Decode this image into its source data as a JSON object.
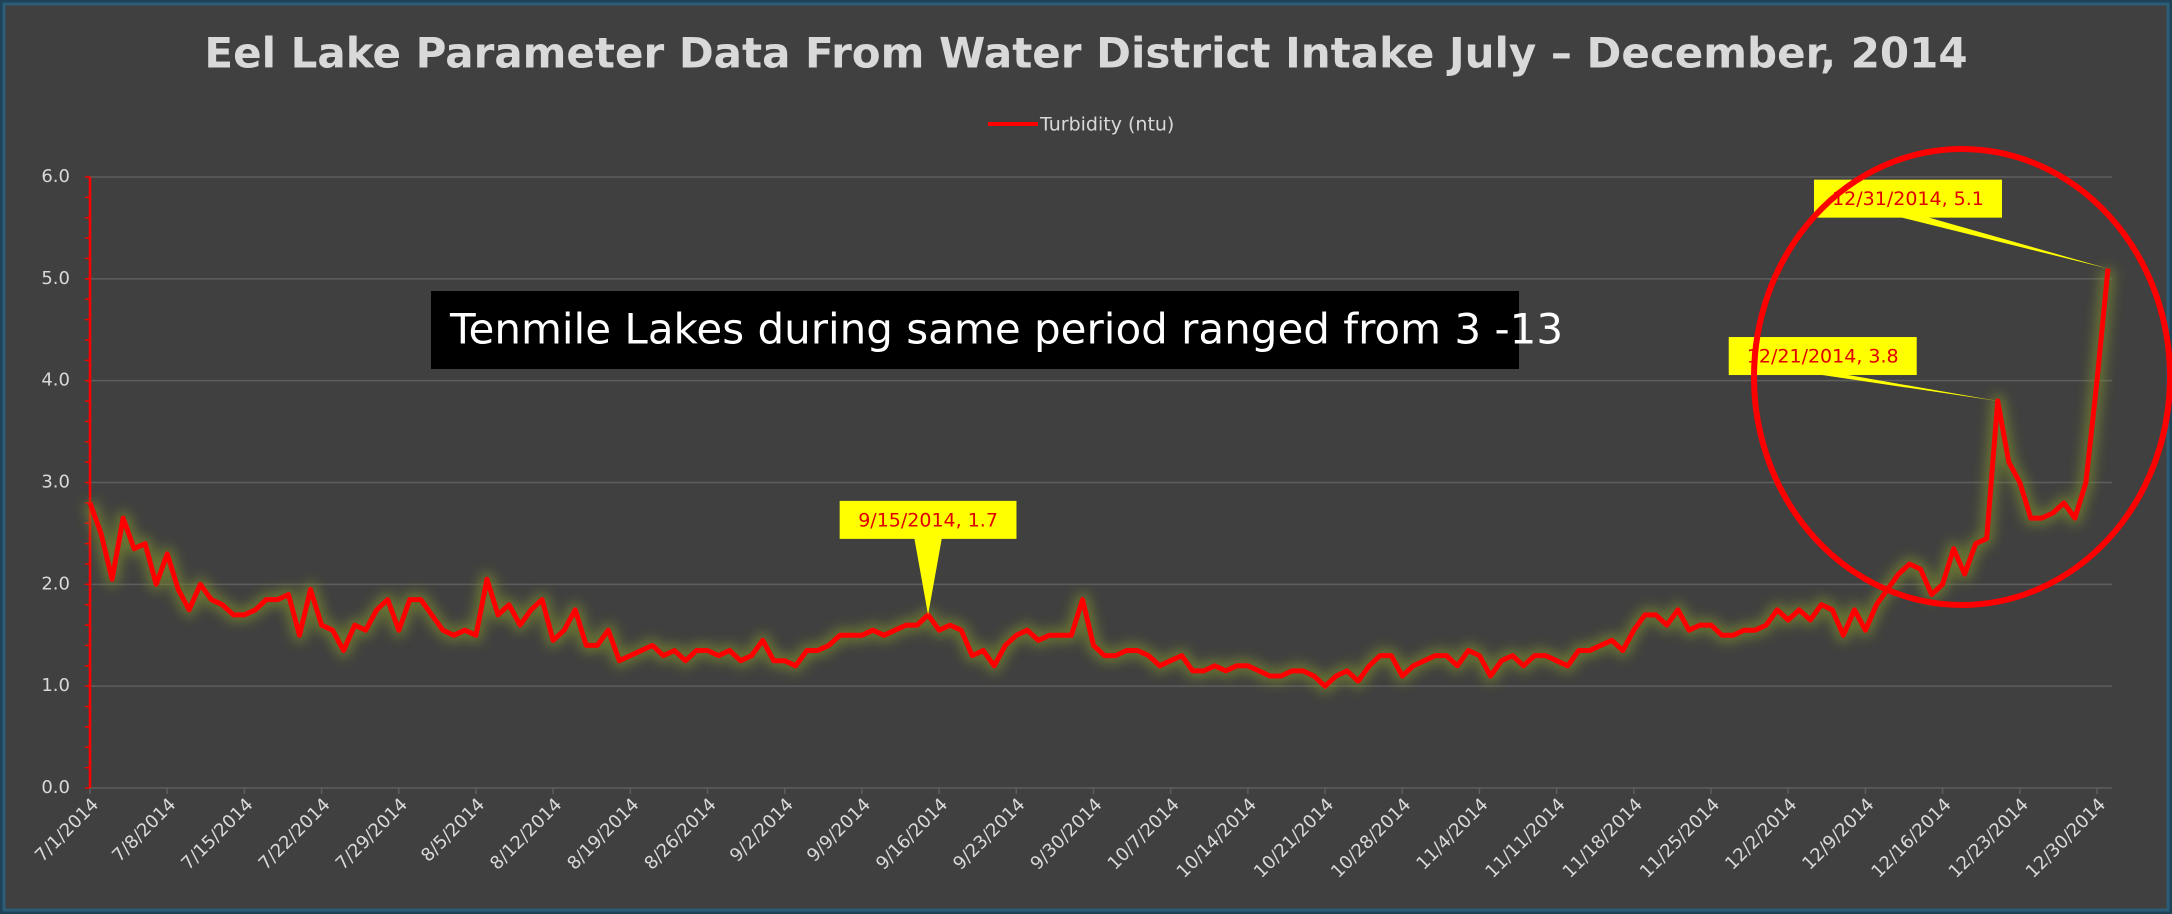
{
  "chart_data": {
    "type": "line",
    "title": "Eel Lake Parameter Data    From Water District Intake    July – December, 2014",
    "annotation": "Tenmile Lakes  during same period ranged from 3 -13",
    "categories": [
      "7/1/2014",
      null,
      null,
      null,
      null,
      null,
      null,
      "7/8/2014",
      null,
      null,
      null,
      null,
      null,
      null,
      "7/15/2014",
      null,
      null,
      null,
      null,
      null,
      null,
      "7/22/2014",
      null,
      null,
      null,
      null,
      null,
      null,
      "7/29/2014",
      null,
      null,
      null,
      null,
      null,
      null,
      "8/5/2014",
      null,
      null,
      null,
      null,
      null,
      null,
      "8/12/2014",
      null,
      null,
      null,
      null,
      null,
      null,
      "8/19/2014",
      null,
      null,
      null,
      null,
      null,
      null,
      "8/26/2014",
      null,
      null,
      null,
      null,
      null,
      null,
      "9/2/2014",
      null,
      null,
      null,
      null,
      null,
      null,
      "9/9/2014",
      null,
      null,
      null,
      null,
      null,
      null,
      "9/16/2014",
      null,
      null,
      null,
      null,
      null,
      null,
      "9/23/2014",
      null,
      null,
      null,
      null,
      null,
      null,
      "9/30/2014",
      null,
      null,
      null,
      null,
      null,
      null,
      "10/7/2014",
      null,
      null,
      null,
      null,
      null,
      null,
      "10/14/2014",
      null,
      null,
      null,
      null,
      null,
      null,
      "10/21/2014",
      null,
      null,
      null,
      null,
      null,
      null,
      "10/28/2014",
      null,
      null,
      null,
      null,
      null,
      null,
      "11/4/2014",
      null,
      null,
      null,
      null,
      null,
      null,
      "11/11/2014",
      null,
      null,
      null,
      null,
      null,
      null,
      "11/18/2014",
      null,
      null,
      null,
      null,
      null,
      null,
      "11/25/2014",
      null,
      null,
      null,
      null,
      null,
      null,
      "12/2/2014",
      null,
      null,
      null,
      null,
      null,
      null,
      "12/9/2014",
      null,
      null,
      null,
      null,
      null,
      null,
      "12/16/2014",
      null,
      null,
      null,
      null,
      null,
      null,
      "12/23/2014",
      null,
      null,
      null,
      null,
      null,
      null,
      "12/30/2014",
      null
    ],
    "series": [
      {
        "name": "Turbidity (ntu)",
        "color": "#ff0000",
        "values": [
          2.8,
          2.5,
          2.05,
          2.65,
          2.35,
          2.4,
          2.0,
          2.3,
          1.95,
          1.75,
          2.0,
          1.85,
          1.8,
          1.7,
          1.7,
          1.75,
          1.85,
          1.85,
          1.9,
          1.5,
          1.95,
          1.6,
          1.55,
          1.35,
          1.6,
          1.55,
          1.75,
          1.85,
          1.55,
          1.85,
          1.85,
          1.7,
          1.55,
          1.5,
          1.55,
          1.5,
          2.05,
          1.7,
          1.8,
          1.6,
          1.75,
          1.85,
          1.45,
          1.55,
          1.75,
          1.4,
          1.4,
          1.55,
          1.25,
          1.3,
          1.35,
          1.4,
          1.3,
          1.35,
          1.25,
          1.35,
          1.35,
          1.3,
          1.35,
          1.25,
          1.3,
          1.45,
          1.25,
          1.25,
          1.2,
          1.35,
          1.35,
          1.4,
          1.5,
          1.5,
          1.5,
          1.55,
          1.5,
          1.55,
          1.6,
          1.6,
          1.7,
          1.55,
          1.6,
          1.55,
          1.3,
          1.35,
          1.2,
          1.4,
          1.5,
          1.55,
          1.45,
          1.5,
          1.5,
          1.5,
          1.85,
          1.4,
          1.3,
          1.3,
          1.35,
          1.35,
          1.3,
          1.2,
          1.25,
          1.3,
          1.15,
          1.15,
          1.2,
          1.15,
          1.2,
          1.2,
          1.15,
          1.1,
          1.1,
          1.15,
          1.15,
          1.1,
          1.0,
          1.1,
          1.15,
          1.05,
          1.2,
          1.3,
          1.3,
          1.1,
          1.2,
          1.25,
          1.3,
          1.3,
          1.2,
          1.35,
          1.3,
          1.1,
          1.25,
          1.3,
          1.2,
          1.3,
          1.3,
          1.25,
          1.2,
          1.35,
          1.35,
          1.4,
          1.45,
          1.35,
          1.55,
          1.7,
          1.7,
          1.6,
          1.75,
          1.55,
          1.6,
          1.6,
          1.5,
          1.5,
          1.55,
          1.55,
          1.6,
          1.75,
          1.65,
          1.75,
          1.65,
          1.8,
          1.75,
          1.5,
          1.75,
          1.55,
          1.8,
          1.95,
          2.1,
          2.2,
          2.15,
          1.9,
          2.0,
          2.35,
          2.1,
          2.4,
          2.45,
          3.8,
          3.2,
          3.0,
          2.65,
          2.65,
          2.7,
          2.8,
          2.65,
          3.0,
          4.0,
          5.1
        ],
        "value_labels": [
          null,
          null,
          null,
          null,
          null,
          null,
          null,
          null,
          null,
          null,
          null,
          null,
          null,
          null,
          null,
          null,
          null,
          null,
          null,
          null,
          null,
          null,
          null,
          null,
          null,
          null,
          null,
          null,
          null,
          null,
          null,
          null,
          null,
          null,
          null,
          null,
          null,
          null,
          null,
          null,
          null,
          null,
          null,
          null,
          null,
          null,
          null,
          null,
          null,
          null,
          null,
          null,
          null,
          null,
          null,
          null,
          null,
          null,
          null,
          null,
          null,
          null,
          null,
          null,
          null,
          null,
          null,
          null,
          null,
          null,
          null,
          null,
          null,
          null,
          null,
          null,
          "9/15/2014, 1.7",
          null,
          null,
          null,
          null,
          null,
          null,
          null,
          null,
          null,
          null,
          null,
          null,
          null,
          null,
          null,
          null,
          null,
          null,
          null,
          null,
          null,
          null,
          null,
          null,
          null,
          null,
          null,
          null,
          null,
          null,
          null,
          null,
          null,
          null,
          null,
          null,
          null,
          null,
          null,
          null,
          null,
          null,
          null,
          null,
          null,
          null,
          null,
          null,
          null,
          null,
          null,
          null,
          null,
          null,
          null,
          null,
          null,
          null,
          null,
          null,
          null,
          null,
          null,
          null,
          null,
          null,
          null,
          null,
          null,
          null,
          null,
          null,
          null,
          null,
          null,
          null,
          null,
          null,
          null,
          null,
          null,
          null,
          null,
          null,
          null,
          null,
          null,
          null,
          null,
          null,
          null,
          null,
          null,
          null,
          null,
          null,
          "12/21/2014, 3.8",
          null,
          null,
          null,
          null,
          null,
          null,
          null,
          null,
          null,
          "12/31/2014, 5.1"
        ]
      }
    ],
    "ylim": [
      0,
      6
    ],
    "yticks": [
      {
        "value": 0,
        "label": "0.0"
      },
      {
        "value": 1,
        "label": "1.0"
      },
      {
        "value": 2,
        "label": "2.0"
      },
      {
        "value": 3,
        "label": "3.0"
      },
      {
        "value": 4,
        "label": "4.0"
      },
      {
        "value": 5,
        "label": "5.0"
      },
      {
        "value": 6,
        "label": "6.0"
      }
    ],
    "grid": true,
    "legend": "top"
  }
}
